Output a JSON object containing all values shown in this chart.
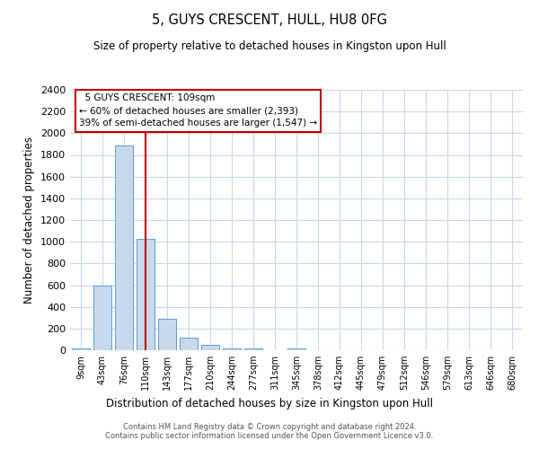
{
  "title": "5, GUYS CRESCENT, HULL, HU8 0FG",
  "subtitle": "Size of property relative to detached houses in Kingston upon Hull",
  "xlabel": "Distribution of detached houses by size in Kingston upon Hull",
  "ylabel": "Number of detached properties",
  "bin_labels": [
    "9sqm",
    "43sqm",
    "76sqm",
    "110sqm",
    "143sqm",
    "177sqm",
    "210sqm",
    "244sqm",
    "277sqm",
    "311sqm",
    "345sqm",
    "378sqm",
    "412sqm",
    "445sqm",
    "479sqm",
    "512sqm",
    "546sqm",
    "579sqm",
    "613sqm",
    "646sqm",
    "680sqm"
  ],
  "bar_values": [
    18,
    600,
    1890,
    1030,
    290,
    120,
    50,
    20,
    15,
    0,
    15,
    0,
    0,
    0,
    0,
    0,
    0,
    0,
    0,
    0,
    0
  ],
  "bar_color": "#c8d9ec",
  "bar_edgecolor": "#5b9bd5",
  "ylim": [
    0,
    2400
  ],
  "yticks": [
    0,
    200,
    400,
    600,
    800,
    1000,
    1200,
    1400,
    1600,
    1800,
    2000,
    2200,
    2400
  ],
  "property_bin_index": 3,
  "vline_color": "#c00000",
  "annotation_text": "  5 GUYS CRESCENT: 109sqm\n← 60% of detached houses are smaller (2,393)\n39% of semi-detached houses are larger (1,547) →",
  "annotation_box_color": "#ffffff",
  "annotation_box_edgecolor": "#c00000",
  "footer_text": "Contains HM Land Registry data © Crown copyright and database right 2024.\nContains public sector information licensed under the Open Government Licence v3.0.",
  "background_color": "#ffffff",
  "grid_color": "#c8d8e8",
  "fig_width": 6.0,
  "fig_height": 5.0
}
